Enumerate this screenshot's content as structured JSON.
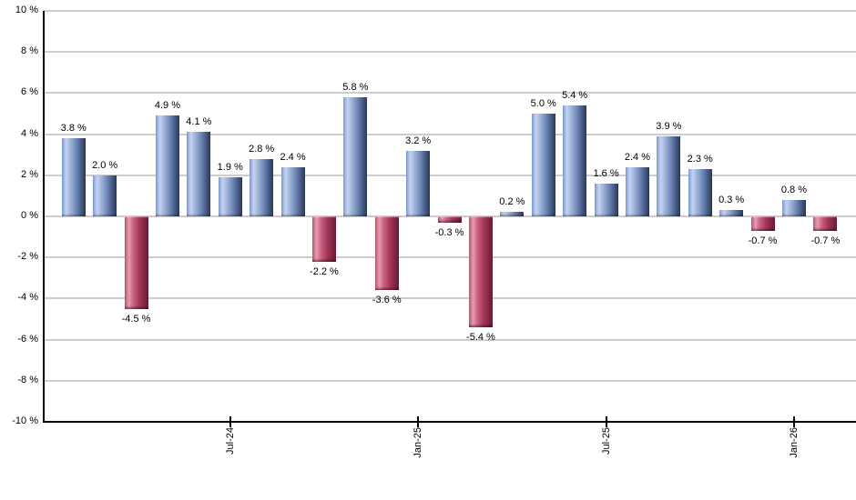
{
  "chart_data": {
    "type": "bar",
    "title": "",
    "xlabel": "",
    "ylabel": "",
    "ylim": [
      -10,
      10
    ],
    "grid": true,
    "legend": false,
    "y_ticks": [
      {
        "value": 10,
        "label": "10 %"
      },
      {
        "value": 8,
        "label": "8 %"
      },
      {
        "value": 6,
        "label": "6 %"
      },
      {
        "value": 4,
        "label": "4 %"
      },
      {
        "value": 2,
        "label": "2 %"
      },
      {
        "value": 0,
        "label": "0 %"
      },
      {
        "value": -2,
        "label": "-2 %"
      },
      {
        "value": -4,
        "label": "-4 %"
      },
      {
        "value": -6,
        "label": "-6 %"
      },
      {
        "value": -8,
        "label": "-8 %"
      },
      {
        "value": -10,
        "label": "-10 %"
      }
    ],
    "bars": [
      {
        "value": 3.8,
        "label": "3.8 %"
      },
      {
        "value": 2.0,
        "label": "2.0 %"
      },
      {
        "value": -4.5,
        "label": "-4.5 %"
      },
      {
        "value": 4.9,
        "label": "4.9 %"
      },
      {
        "value": 4.1,
        "label": "4.1 %"
      },
      {
        "value": 1.9,
        "label": "1.9 %"
      },
      {
        "value": 2.8,
        "label": "2.8 %"
      },
      {
        "value": 2.4,
        "label": "2.4 %"
      },
      {
        "value": -2.2,
        "label": "-2.2 %"
      },
      {
        "value": 5.8,
        "label": "5.8 %"
      },
      {
        "value": -3.6,
        "label": "-3.6 %"
      },
      {
        "value": 3.2,
        "label": "3.2 %"
      },
      {
        "value": -0.3,
        "label": "-0.3 %"
      },
      {
        "value": -5.4,
        "label": "-5.4 %"
      },
      {
        "value": 0.2,
        "label": "0.2 %"
      },
      {
        "value": 5.0,
        "label": "5.0 %"
      },
      {
        "value": 5.4,
        "label": "5.4 %"
      },
      {
        "value": 1.6,
        "label": "1.6 %"
      },
      {
        "value": 2.4,
        "label": "2.4 %"
      },
      {
        "value": 3.9,
        "label": "3.9 %"
      },
      {
        "value": 2.3,
        "label": "2.3 %"
      },
      {
        "value": 0.3,
        "label": "0.3 %"
      },
      {
        "value": -0.7,
        "label": "-0.7 %"
      },
      {
        "value": 0.8,
        "label": "0.8 %"
      },
      {
        "value": -0.7,
        "label": "-0.7 %"
      }
    ],
    "x_ticks": [
      {
        "bar_index": 5,
        "label": "Jul-24"
      },
      {
        "bar_index": 11,
        "label": "Jan-25"
      },
      {
        "bar_index": 17,
        "label": "Jul-25"
      },
      {
        "bar_index": 23,
        "label": "Jan-26"
      }
    ],
    "colors": {
      "positive_gradient": [
        "#7b9ce0",
        "#c6d3ec",
        "#9fb5db",
        "#6e87b6",
        "#41547e",
        "#2b3a5a"
      ],
      "negative_gradient": [
        "#c25671",
        "#e49cb0",
        "#cb6384",
        "#a63a5c",
        "#802441",
        "#6d1c32"
      ],
      "gridline": "#cdcdcd",
      "axis": "#000000",
      "label_text": "#000000",
      "background": "#ffffff"
    }
  }
}
